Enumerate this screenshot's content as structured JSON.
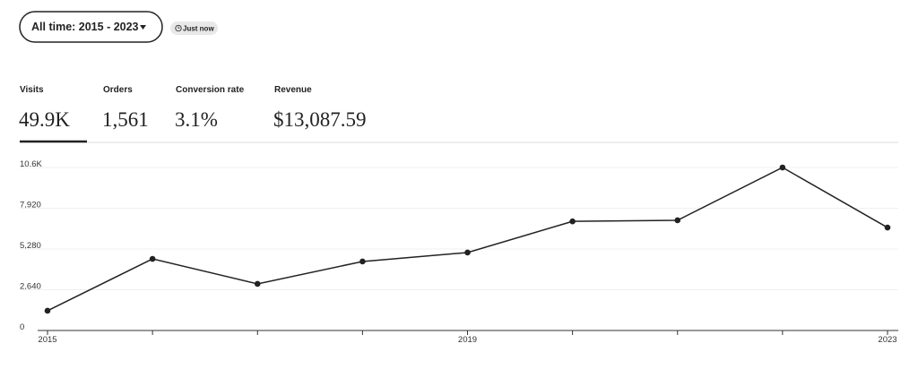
{
  "filter": {
    "label": "All time: 2015 - 2023"
  },
  "badge": "Just now",
  "stats": [
    {
      "label": "Visits",
      "value": "49.9K"
    },
    {
      "label": "Orders",
      "value": "1,561"
    },
    {
      "label": "Conversion rate",
      "value": "3.1%"
    },
    {
      "label": "Revenue",
      "value": "$13,087.59"
    }
  ],
  "chart_data": {
    "type": "line",
    "categories": [
      "2015",
      null,
      null,
      null,
      "2019",
      null,
      null,
      null,
      "2023"
    ],
    "values": [
      1280,
      4640,
      3020,
      4470,
      5050,
      7070,
      7140,
      10560,
      6670
    ],
    "color": "#222222",
    "ylim": [
      0,
      10560
    ],
    "yticks": [
      0,
      {
        "value": 2640,
        "label": "2,640"
      },
      {
        "value": 5280,
        "label": "5,280"
      },
      {
        "value": 7920,
        "label": "7,920"
      },
      {
        "value": 10560,
        "label": "10.6K"
      }
    ],
    "grid": true
  }
}
